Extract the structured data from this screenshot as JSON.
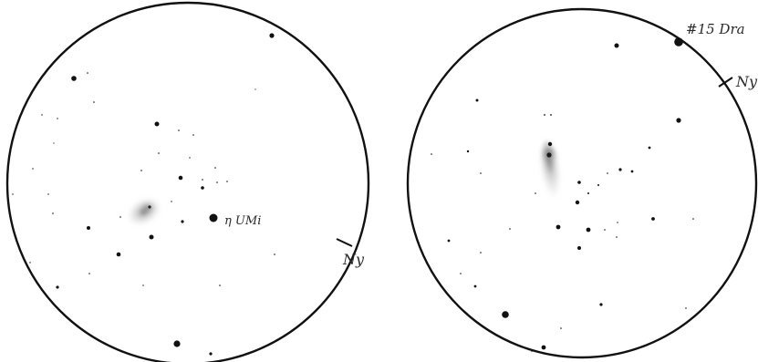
{
  "left_field": {
    "star_label": "η UMi",
    "direction_label": "Ny"
  },
  "right_field": {
    "object_label": "#15 Dra",
    "direction_label": "Ny"
  },
  "colors": {
    "ink": "#111111",
    "paper": "#ffffff",
    "nebulosity": "#8a8a8a"
  }
}
